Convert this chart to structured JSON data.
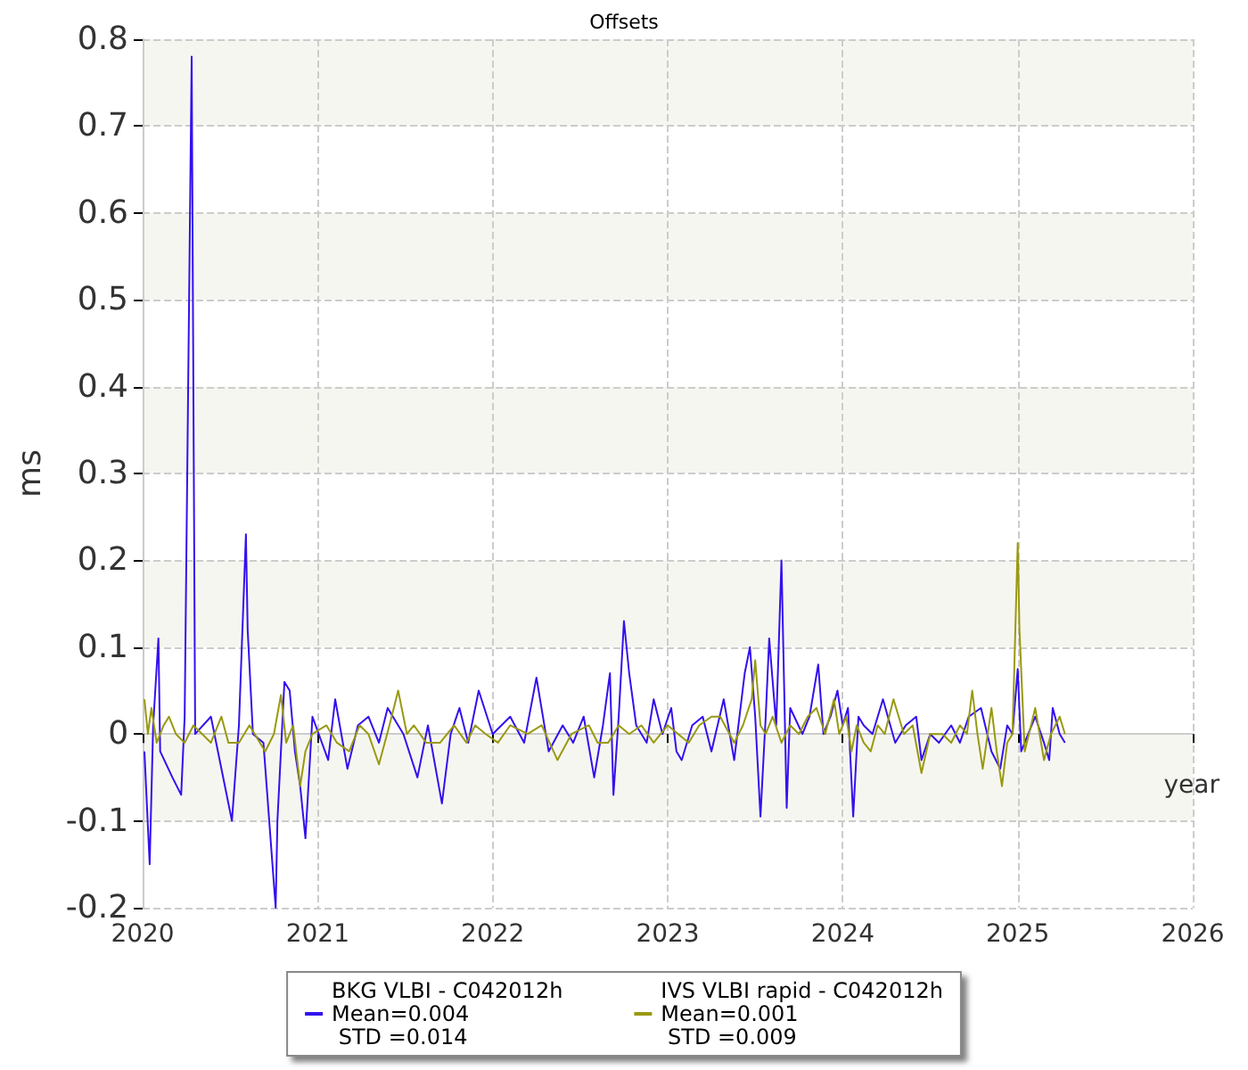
{
  "chart_data": {
    "type": "line",
    "title": "Offsets",
    "xlabel": "year",
    "ylabel": "ms",
    "xlim": [
      2020,
      2026
    ],
    "xticks": [
      2020,
      2021,
      2022,
      2023,
      2024,
      2025,
      2026
    ],
    "ylim": [
      -0.2,
      0.8
    ],
    "yticks": [
      -0.2,
      -0.1,
      0,
      0.1,
      0.2,
      0.3,
      0.4,
      0.5,
      0.6,
      0.7,
      0.8
    ],
    "grid": true,
    "legend": "bottom",
    "series": [
      {
        "name": "BKG VLBI - C042012h\nMean=0.004\n STD =0.014",
        "color": "#3311ee",
        "x": [
          2020.01,
          2020.04,
          2020.06,
          2020.09,
          2020.1,
          2020.17,
          2020.22,
          2020.24,
          2020.28,
          2020.3,
          2020.39,
          2020.51,
          2020.55,
          2020.59,
          2020.6,
          2020.63,
          2020.69,
          2020.76,
          2020.77,
          2020.81,
          2020.84,
          2020.87,
          2020.9,
          2020.93,
          2020.97,
          2021.06,
          2021.1,
          2021.17,
          2021.23,
          2021.29,
          2021.35,
          2021.4,
          2021.49,
          2021.57,
          2021.63,
          2021.71,
          2021.76,
          2021.81,
          2021.86,
          2021.92,
          2022.0,
          2022.1,
          2022.18,
          2022.25,
          2022.32,
          2022.4,
          2022.46,
          2022.52,
          2022.58,
          2022.63,
          2022.67,
          2022.69,
          2022.72,
          2022.75,
          2022.78,
          2022.82,
          2022.88,
          2022.92,
          2022.97,
          2023.02,
          2023.05,
          2023.08,
          2023.14,
          2023.2,
          2023.25,
          2023.32,
          2023.38,
          2023.44,
          2023.47,
          2023.5,
          2023.53,
          2023.56,
          2023.58,
          2023.62,
          2023.65,
          2023.68,
          2023.7,
          2023.77,
          2023.81,
          2023.86,
          2023.89,
          2023.93,
          2023.97,
          2024.0,
          2024.03,
          2024.06,
          2024.09,
          2024.12,
          2024.17,
          2024.23,
          2024.3,
          2024.36,
          2024.42,
          2024.45,
          2024.5,
          2024.55,
          2024.62,
          2024.67,
          2024.72,
          2024.79,
          2024.85,
          2024.9,
          2024.94,
          2024.97,
          2025.0,
          2025.02,
          2025.06,
          2025.1,
          2025.15,
          2025.18,
          2025.2,
          2025.24,
          2025.27
        ],
        "values": [
          -0.02,
          -0.15,
          0.01,
          0.11,
          -0.02,
          -0.05,
          -0.07,
          0.02,
          0.78,
          0.0,
          0.02,
          -0.1,
          0.01,
          0.23,
          0.12,
          0.0,
          -0.01,
          -0.2,
          -0.1,
          0.06,
          0.05,
          -0.02,
          -0.06,
          -0.12,
          0.02,
          -0.03,
          0.04,
          -0.04,
          0.01,
          0.02,
          -0.01,
          0.03,
          0.0,
          -0.05,
          0.01,
          -0.08,
          0.0,
          0.03,
          -0.01,
          0.05,
          0.0,
          0.02,
          -0.01,
          0.065,
          -0.02,
          0.01,
          -0.01,
          0.02,
          -0.05,
          0.01,
          0.07,
          -0.07,
          0.02,
          0.13,
          0.07,
          0.01,
          -0.01,
          0.04,
          0.0,
          0.03,
          -0.02,
          -0.03,
          0.01,
          0.02,
          -0.02,
          0.04,
          -0.03,
          0.07,
          0.1,
          0.02,
          -0.095,
          0.02,
          0.11,
          0.01,
          0.2,
          -0.085,
          0.03,
          0.0,
          0.02,
          0.08,
          0.0,
          0.02,
          0.05,
          0.01,
          0.03,
          -0.095,
          0.02,
          0.01,
          0.0,
          0.04,
          -0.01,
          0.01,
          0.02,
          -0.03,
          0.0,
          -0.01,
          0.01,
          -0.01,
          0.02,
          0.03,
          -0.02,
          -0.04,
          0.01,
          0.0,
          0.075,
          -0.02,
          0.0,
          0.02,
          -0.01,
          -0.03,
          0.03,
          0.0,
          -0.01
        ]
      },
      {
        "name": "IVS VLBI rapid - C042012h\nMean=0.001\n STD =0.009",
        "color": "#999911",
        "x": [
          2020.01,
          2020.03,
          2020.05,
          2020.08,
          2020.12,
          2020.15,
          2020.19,
          2020.24,
          2020.29,
          2020.34,
          2020.39,
          2020.45,
          2020.49,
          2020.55,
          2020.61,
          2020.7,
          2020.75,
          2020.79,
          2020.82,
          2020.86,
          2020.9,
          2020.93,
          2020.97,
          2021.05,
          2021.11,
          2021.18,
          2021.24,
          2021.29,
          2021.35,
          2021.41,
          2021.46,
          2021.51,
          2021.55,
          2021.62,
          2021.7,
          2021.78,
          2021.85,
          2021.9,
          2021.96,
          2022.03,
          2022.1,
          2022.2,
          2022.28,
          2022.37,
          2022.45,
          2022.55,
          2022.6,
          2022.66,
          2022.72,
          2022.78,
          2022.85,
          2022.92,
          2023.0,
          2023.06,
          2023.12,
          2023.18,
          2023.25,
          2023.3,
          2023.38,
          2023.43,
          2023.48,
          2023.5,
          2023.53,
          2023.56,
          2023.6,
          2023.65,
          2023.7,
          2023.75,
          2023.8,
          2023.85,
          2023.9,
          2023.95,
          2023.98,
          2024.02,
          2024.05,
          2024.08,
          2024.12,
          2024.16,
          2024.2,
          2024.24,
          2024.29,
          2024.35,
          2024.4,
          2024.45,
          2024.5,
          2024.57,
          2024.62,
          2024.67,
          2024.71,
          2024.74,
          2024.77,
          2024.8,
          2024.85,
          2024.88,
          2024.91,
          2024.94,
          2024.97,
          2025.0,
          2025.01,
          2025.04,
          2025.1,
          2025.15,
          2025.19,
          2025.24,
          2025.27
        ],
        "values": [
          0.04,
          0.0,
          0.03,
          -0.01,
          0.01,
          0.02,
          0.0,
          -0.01,
          0.01,
          0.0,
          -0.01,
          0.02,
          -0.01,
          -0.01,
          0.01,
          -0.02,
          0.0,
          0.045,
          -0.01,
          0.01,
          -0.06,
          -0.02,
          0.0,
          0.01,
          -0.01,
          -0.02,
          0.01,
          0.0,
          -0.035,
          0.01,
          0.05,
          0.0,
          0.01,
          -0.01,
          -0.01,
          0.01,
          -0.01,
          0.01,
          0.0,
          -0.01,
          0.01,
          0.0,
          0.01,
          -0.03,
          0.0,
          0.01,
          -0.01,
          -0.01,
          0.01,
          0.0,
          0.01,
          -0.01,
          0.01,
          0.0,
          -0.01,
          0.01,
          0.02,
          0.02,
          -0.01,
          0.01,
          0.04,
          0.085,
          0.01,
          0.0,
          0.02,
          -0.01,
          0.01,
          0.0,
          0.02,
          0.03,
          0.0,
          0.04,
          0.0,
          0.02,
          -0.02,
          0.01,
          -0.01,
          -0.02,
          0.01,
          0.0,
          0.04,
          0.0,
          0.01,
          -0.045,
          0.0,
          0.0,
          -0.01,
          0.01,
          0.0,
          0.05,
          0.0,
          -0.04,
          0.03,
          -0.02,
          -0.06,
          -0.01,
          0.0,
          0.22,
          0.12,
          -0.02,
          0.03,
          -0.03,
          0.0,
          0.02,
          0.0
        ]
      }
    ]
  }
}
